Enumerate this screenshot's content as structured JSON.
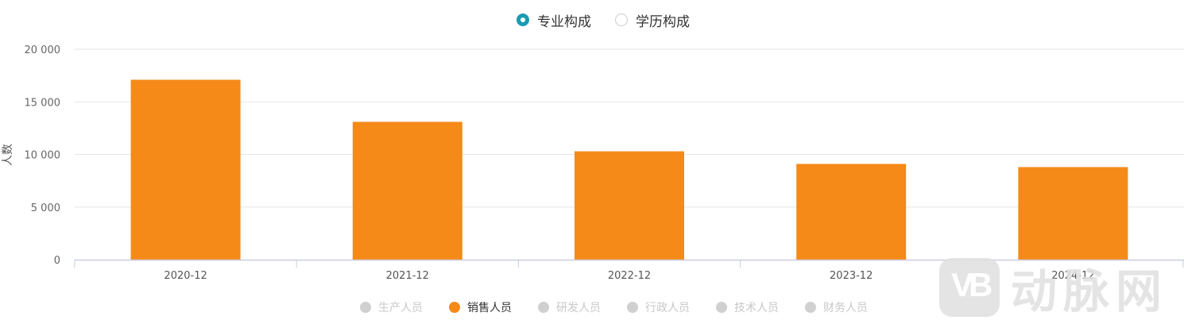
{
  "toggle": {
    "options": [
      {
        "label": "专业构成",
        "selected": true
      },
      {
        "label": "学历构成",
        "selected": false
      }
    ]
  },
  "legend": {
    "items": [
      {
        "label": "生产人员",
        "active": false
      },
      {
        "label": "销售人员",
        "active": true
      },
      {
        "label": "研发人员",
        "active": false
      },
      {
        "label": "行政人员",
        "active": false
      },
      {
        "label": "技术人员",
        "active": false
      },
      {
        "label": "财务人员",
        "active": false
      }
    ]
  },
  "watermark": {
    "text": "动脉网",
    "logo": "VB"
  },
  "colors": {
    "bar": "#f58a18",
    "accent": "#1a9bb3",
    "inactive": "#d0d0d0"
  },
  "chart_data": {
    "type": "bar",
    "ylabel": "人数",
    "xlabel": "",
    "categories": [
      "2020-12",
      "2021-12",
      "2022-12",
      "2023-12",
      "2024-12"
    ],
    "series": [
      {
        "name": "销售人员",
        "values": [
          17100,
          13100,
          10300,
          9100,
          8800
        ]
      }
    ],
    "ylim": [
      0,
      20000
    ],
    "yticks": [
      0,
      5000,
      10000,
      15000,
      20000
    ],
    "ytick_labels": [
      "0",
      "5 000",
      "10 000",
      "15 000",
      "20 000"
    ],
    "grid": true
  }
}
